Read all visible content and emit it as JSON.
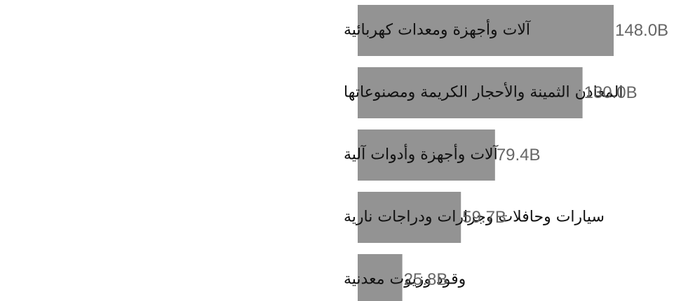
{
  "chart_data": {
    "type": "bar",
    "orientation": "horizontal",
    "categories": [
      "آلات وأجهزة ومعدات كهربائية",
      "المعادن الثمينة والأحجار الكريمة ومصنوعاتها",
      "آلات وأجهزة وأدوات آلية",
      "سيارات وحافلات وجرارات ودراجات نارية",
      "وقود وزيوت معدنية"
    ],
    "values": [
      148.0,
      130.0,
      79.4,
      59.7,
      25.8
    ],
    "value_labels": [
      "148.0B",
      "130.0B",
      "79.4B",
      "59.7B",
      "25.8B"
    ],
    "color": "#939393"
  }
}
